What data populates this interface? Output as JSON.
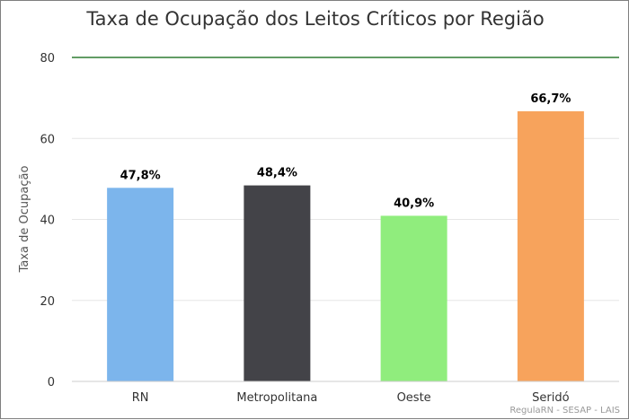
{
  "chart_data": {
    "type": "bar",
    "title": "Taxa de Ocupação dos Leitos Críticos por Região",
    "xlabel": "",
    "ylabel": "Taxa de Ocupação",
    "ylim": [
      0,
      80
    ],
    "yticks": [
      "0",
      "20",
      "40",
      "60",
      "80"
    ],
    "grid": true,
    "categories": [
      "RN",
      "Metropolitana",
      "Oeste",
      "Seridó"
    ],
    "values": [
      47.8,
      48.4,
      40.9,
      66.7
    ],
    "data_labels": [
      "47,8%",
      "48,4%",
      "40,9%",
      "66,7%"
    ],
    "colors": [
      "#7cb5ec",
      "#434348",
      "#90ed7d",
      "#f7a35c"
    ],
    "reference_line": {
      "value": 80,
      "color": "#2e7d32"
    }
  },
  "credit": "RegulaRN - SESAP - LAIS"
}
